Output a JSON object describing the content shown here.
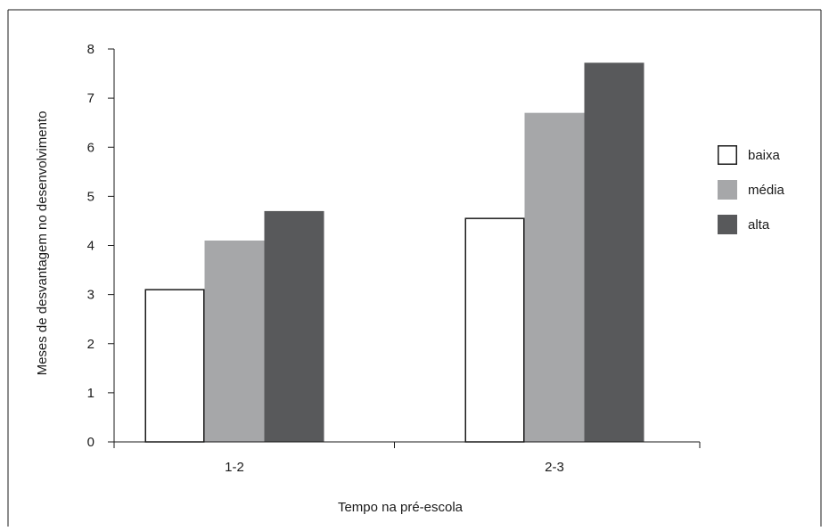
{
  "chart_data": {
    "type": "bar",
    "categories": [
      "1-2",
      "2-3"
    ],
    "series": [
      {
        "name": "baixa",
        "values": [
          3.1,
          4.55
        ],
        "color": "#ffffff",
        "stroke": "#1a1a1a"
      },
      {
        "name": "média",
        "values": [
          4.1,
          6.7
        ],
        "color": "#a6a7a9",
        "stroke": "none"
      },
      {
        "name": "alta",
        "values": [
          4.7,
          7.72
        ],
        "color": "#58595b",
        "stroke": "none"
      }
    ],
    "xlabel": "Tempo na pré-escola",
    "ylabel": "Meses de desvantagem no desenvolvimento",
    "ylim": [
      0,
      8
    ],
    "yticks": [
      0,
      1,
      2,
      3,
      4,
      5,
      6,
      7,
      8
    ],
    "grid": false,
    "legend_position": "right"
  }
}
